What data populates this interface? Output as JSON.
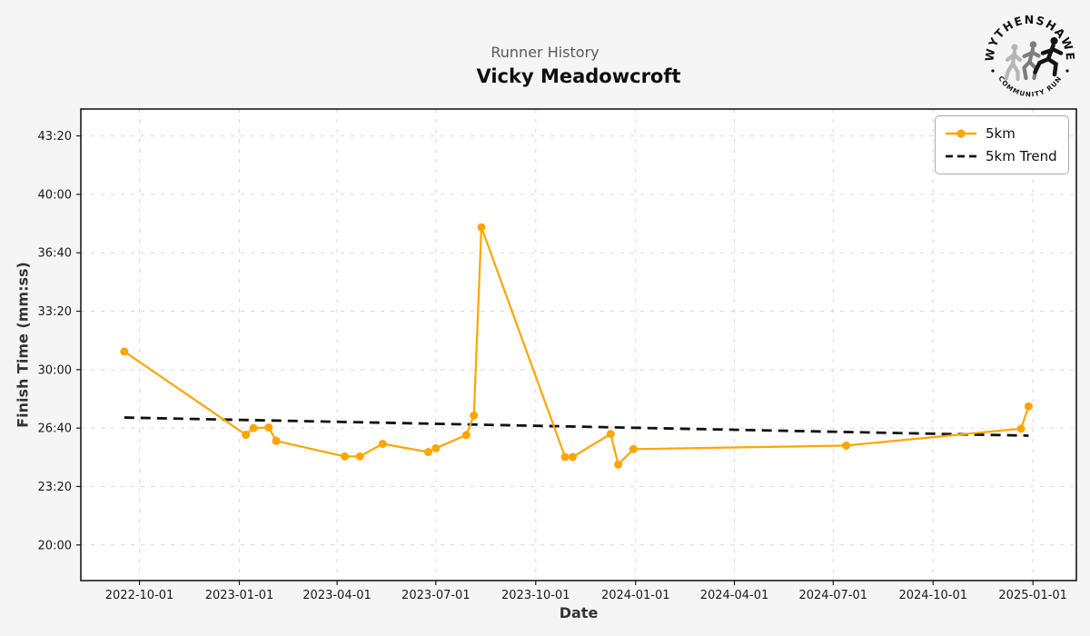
{
  "header": {
    "suptitle": "Runner History",
    "title": "Vicky Meadowcroft"
  },
  "logo": {
    "top_text": "WYTHENSHAWE",
    "bottom_text": "COMMUNITY RUN"
  },
  "legend": {
    "items": [
      {
        "label": "5km",
        "style": "line-with-marker",
        "color": "#FFA500"
      },
      {
        "label": "5km Trend",
        "style": "dashed-line",
        "color": "#111111"
      }
    ],
    "position": "upper right"
  },
  "colors": {
    "series": "#FFA500",
    "trend": "#111111",
    "grid": "#d9d9d9",
    "spine": "#1a1a1a",
    "figure_background": "#f5f5f5",
    "plot_background": "#ffffff",
    "tick_label": "#1a1a1a",
    "axis_label": "#333333",
    "suptitle": "#595959"
  },
  "chart_data": {
    "type": "line",
    "title": "Vicky Meadowcroft",
    "subtitle": "Runner History",
    "xlabel": "Date",
    "ylabel": "Finish Time (mm:ss)",
    "grid": true,
    "legend_position": "upper right",
    "x_ticks": [
      "2022-10-01",
      "2023-01-01",
      "2023-04-01",
      "2023-07-01",
      "2023-10-01",
      "2024-01-01",
      "2024-04-01",
      "2024-07-01",
      "2024-10-01",
      "2025-01-01"
    ],
    "y_ticks": [
      "43:20",
      "40:00",
      "36:40",
      "33:20",
      "30:00",
      "26:40",
      "23:20",
      "20:00"
    ],
    "x_range": [
      "2022-08-08",
      "2025-02-10"
    ],
    "y_range_mmss": [
      "17:58",
      "44:52"
    ],
    "series": [
      {
        "name": "5km",
        "color": "#FFA500",
        "style": "solid-with-markers",
        "points": [
          {
            "date": "2022-09-17",
            "time": "31:02"
          },
          {
            "date": "2023-01-07",
            "time": "26:17"
          },
          {
            "date": "2023-01-14",
            "time": "26:40"
          },
          {
            "date": "2023-01-28",
            "time": "26:42"
          },
          {
            "date": "2023-02-04",
            "time": "25:56"
          },
          {
            "date": "2023-04-08",
            "time": "25:03"
          },
          {
            "date": "2023-04-22",
            "time": "25:03"
          },
          {
            "date": "2023-05-13",
            "time": "25:46"
          },
          {
            "date": "2023-06-24",
            "time": "25:18"
          },
          {
            "date": "2023-07-01",
            "time": "25:31"
          },
          {
            "date": "2023-07-29",
            "time": "26:16"
          },
          {
            "date": "2023-08-05",
            "time": "27:23"
          },
          {
            "date": "2023-08-12",
            "time": "38:07"
          },
          {
            "date": "2023-10-28",
            "time": "25:01"
          },
          {
            "date": "2023-11-04",
            "time": "25:01"
          },
          {
            "date": "2023-12-09",
            "time": "26:20"
          },
          {
            "date": "2023-12-16",
            "time": "24:35"
          },
          {
            "date": "2023-12-30",
            "time": "25:28"
          },
          {
            "date": "2024-07-13",
            "time": "25:40"
          },
          {
            "date": "2024-12-21",
            "time": "26:38"
          },
          {
            "date": "2024-12-28",
            "time": "27:54"
          }
        ]
      },
      {
        "name": "5km Trend",
        "color": "#111111",
        "style": "dashed",
        "points": [
          {
            "date": "2022-09-17",
            "time": "27:16"
          },
          {
            "date": "2024-12-28",
            "time": "26:14"
          }
        ]
      }
    ]
  }
}
